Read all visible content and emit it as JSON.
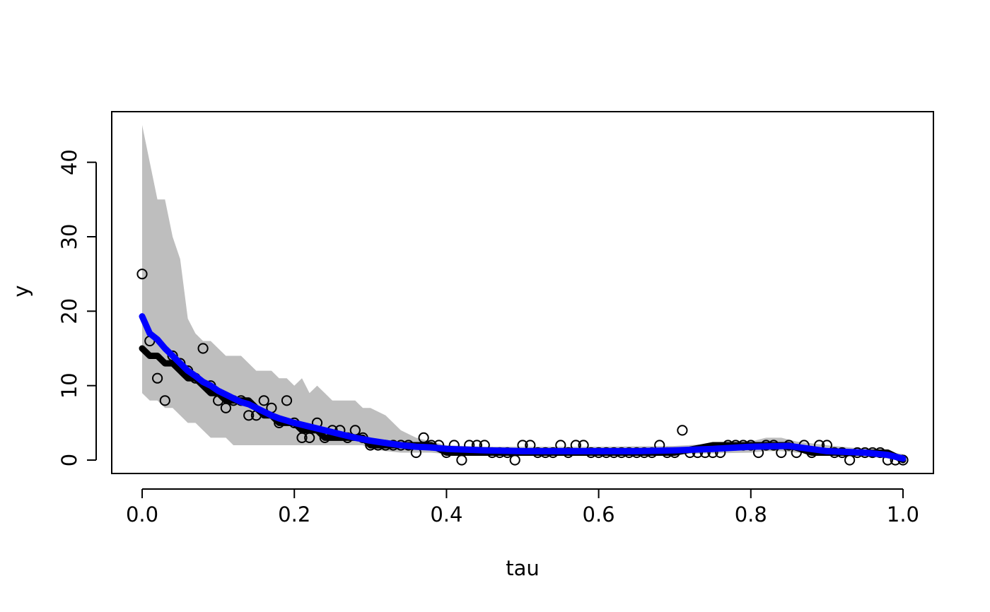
{
  "chart_data": {
    "type": "scatter",
    "title": "",
    "xlabel": "tau",
    "ylabel": "y",
    "xlim": [
      -0.04,
      1.04
    ],
    "ylim": [
      -1.8,
      46.8
    ],
    "xticks": [
      0.0,
      0.2,
      0.4,
      0.6,
      0.8,
      1.0
    ],
    "xtick_labels": [
      "0.0",
      "0.2",
      "0.4",
      "0.6",
      "0.8",
      "1.0"
    ],
    "yticks": [
      0,
      10,
      20,
      30,
      40
    ],
    "ytick_labels": [
      "0",
      "10",
      "20",
      "30",
      "40"
    ],
    "grid": false,
    "legend": "none",
    "colors": {
      "band": "#bebebe",
      "black_line": "#000000",
      "blue_line": "#0000ff",
      "points": "#000000"
    },
    "band": {
      "x": [
        0.0,
        0.01,
        0.02,
        0.03,
        0.04,
        0.05,
        0.06,
        0.07,
        0.08,
        0.09,
        0.1,
        0.11,
        0.12,
        0.13,
        0.14,
        0.15,
        0.16,
        0.17,
        0.18,
        0.19,
        0.2,
        0.21,
        0.22,
        0.23,
        0.24,
        0.25,
        0.26,
        0.27,
        0.28,
        0.29,
        0.3,
        0.32,
        0.34,
        0.36,
        0.38,
        0.4,
        0.45,
        0.5,
        0.6,
        0.7,
        0.8,
        0.82,
        0.84,
        0.86,
        0.9,
        0.95,
        1.0
      ],
      "upper": [
        45,
        40,
        35,
        35,
        30,
        27,
        19,
        17,
        16,
        16,
        15,
        14,
        14,
        14,
        13,
        12,
        12,
        12,
        11,
        11,
        10,
        11,
        9,
        10,
        9,
        8,
        8,
        8,
        8,
        7,
        7,
        6,
        4,
        3,
        2.5,
        2,
        1.8,
        1.8,
        1.8,
        1.9,
        2.5,
        3,
        3,
        2.5,
        2,
        1.5,
        0.8
      ],
      "lower": [
        9,
        8,
        8,
        7,
        7,
        6,
        5,
        5,
        4,
        3,
        3,
        3,
        2,
        2,
        2,
        2,
        2,
        2,
        2,
        2,
        2,
        2,
        2,
        2,
        2,
        2,
        2,
        2,
        2,
        2,
        1.5,
        1.2,
        1,
        1,
        1,
        0.8,
        0.8,
        0.8,
        0.8,
        0.8,
        1,
        1.2,
        1.2,
        1,
        0.8,
        0.5,
        0
      ]
    },
    "series": [
      {
        "style": "black-line",
        "x": [
          0.0,
          0.01,
          0.02,
          0.03,
          0.04,
          0.05,
          0.06,
          0.07,
          0.08,
          0.09,
          0.1,
          0.11,
          0.12,
          0.13,
          0.14,
          0.15,
          0.16,
          0.17,
          0.18,
          0.19,
          0.2,
          0.21,
          0.22,
          0.23,
          0.24,
          0.25,
          0.26,
          0.27,
          0.28,
          0.29,
          0.3,
          0.32,
          0.34,
          0.36,
          0.38,
          0.4,
          0.45,
          0.5,
          0.55,
          0.6,
          0.65,
          0.7,
          0.75,
          0.8,
          0.85,
          0.88,
          0.9,
          0.95,
          0.98,
          1.0
        ],
        "y": [
          15,
          14,
          14,
          13,
          13,
          12,
          11,
          11,
          10,
          9,
          9,
          8,
          8,
          8,
          8,
          7,
          6,
          6,
          5,
          5,
          5,
          4,
          4,
          4,
          3,
          3,
          3,
          3,
          3,
          3,
          2,
          2,
          2,
          2,
          2,
          1,
          1,
          1,
          1,
          1,
          1,
          1,
          2,
          2,
          2,
          1,
          1,
          1,
          1,
          0
        ]
      },
      {
        "style": "blue-line",
        "x": [
          0.0,
          0.01,
          0.02,
          0.03,
          0.04,
          0.05,
          0.06,
          0.07,
          0.08,
          0.09,
          0.1,
          0.11,
          0.12,
          0.13,
          0.14,
          0.15,
          0.16,
          0.17,
          0.18,
          0.19,
          0.2,
          0.22,
          0.24,
          0.26,
          0.28,
          0.3,
          0.32,
          0.34,
          0.36,
          0.38,
          0.4,
          0.45,
          0.5,
          0.55,
          0.6,
          0.65,
          0.7,
          0.75,
          0.8,
          0.85,
          0.9,
          0.95,
          0.98,
          1.0
        ],
        "y": [
          19.3,
          17,
          16.2,
          15,
          14,
          13,
          12,
          11.3,
          10.5,
          10,
          9.3,
          8.8,
          8.3,
          7.8,
          7.5,
          7,
          6.5,
          6,
          5.6,
          5.3,
          5,
          4.5,
          4,
          3.5,
          3,
          2.6,
          2.3,
          2,
          1.8,
          1.7,
          1.5,
          1.3,
          1.2,
          1.2,
          1.2,
          1.2,
          1.3,
          1.5,
          1.8,
          1.9,
          1.2,
          1.0,
          0.7,
          0.2
        ]
      }
    ],
    "points": {
      "x": [
        0.0,
        0.01,
        0.02,
        0.03,
        0.04,
        0.05,
        0.06,
        0.07,
        0.08,
        0.09,
        0.1,
        0.11,
        0.12,
        0.13,
        0.14,
        0.15,
        0.16,
        0.17,
        0.18,
        0.19,
        0.2,
        0.21,
        0.22,
        0.23,
        0.24,
        0.25,
        0.26,
        0.27,
        0.28,
        0.29,
        0.3,
        0.31,
        0.32,
        0.33,
        0.34,
        0.35,
        0.36,
        0.37,
        0.38,
        0.39,
        0.4,
        0.41,
        0.42,
        0.43,
        0.44,
        0.45,
        0.46,
        0.47,
        0.48,
        0.49,
        0.5,
        0.51,
        0.52,
        0.53,
        0.54,
        0.55,
        0.56,
        0.57,
        0.58,
        0.59,
        0.6,
        0.61,
        0.62,
        0.63,
        0.64,
        0.65,
        0.66,
        0.67,
        0.68,
        0.69,
        0.7,
        0.71,
        0.72,
        0.73,
        0.74,
        0.75,
        0.76,
        0.77,
        0.78,
        0.79,
        0.8,
        0.81,
        0.82,
        0.83,
        0.84,
        0.85,
        0.86,
        0.87,
        0.88,
        0.89,
        0.9,
        0.91,
        0.92,
        0.93,
        0.94,
        0.95,
        0.96,
        0.97,
        0.98,
        0.99,
        1.0
      ],
      "y": [
        25,
        16,
        11,
        8,
        14,
        13,
        12,
        11,
        15,
        10,
        8,
        7,
        8,
        8,
        6,
        6,
        8,
        7,
        5,
        8,
        5,
        3,
        3,
        5,
        3,
        4,
        4,
        3,
        4,
        3,
        2,
        2,
        2,
        2,
        2,
        2,
        1,
        3,
        2,
        2,
        1,
        2,
        0,
        2,
        2,
        2,
        1,
        1,
        1,
        0,
        2,
        2,
        1,
        1,
        1,
        2,
        1,
        2,
        2,
        1,
        1,
        1,
        1,
        1,
        1,
        1,
        1,
        1,
        2,
        1,
        1,
        4,
        1,
        1,
        1,
        1,
        1,
        2,
        2,
        2,
        2,
        1,
        2,
        2,
        1,
        2,
        1,
        2,
        1,
        2,
        2,
        1,
        1,
        0,
        1,
        1,
        1,
        1,
        0,
        0,
        0
      ]
    }
  }
}
